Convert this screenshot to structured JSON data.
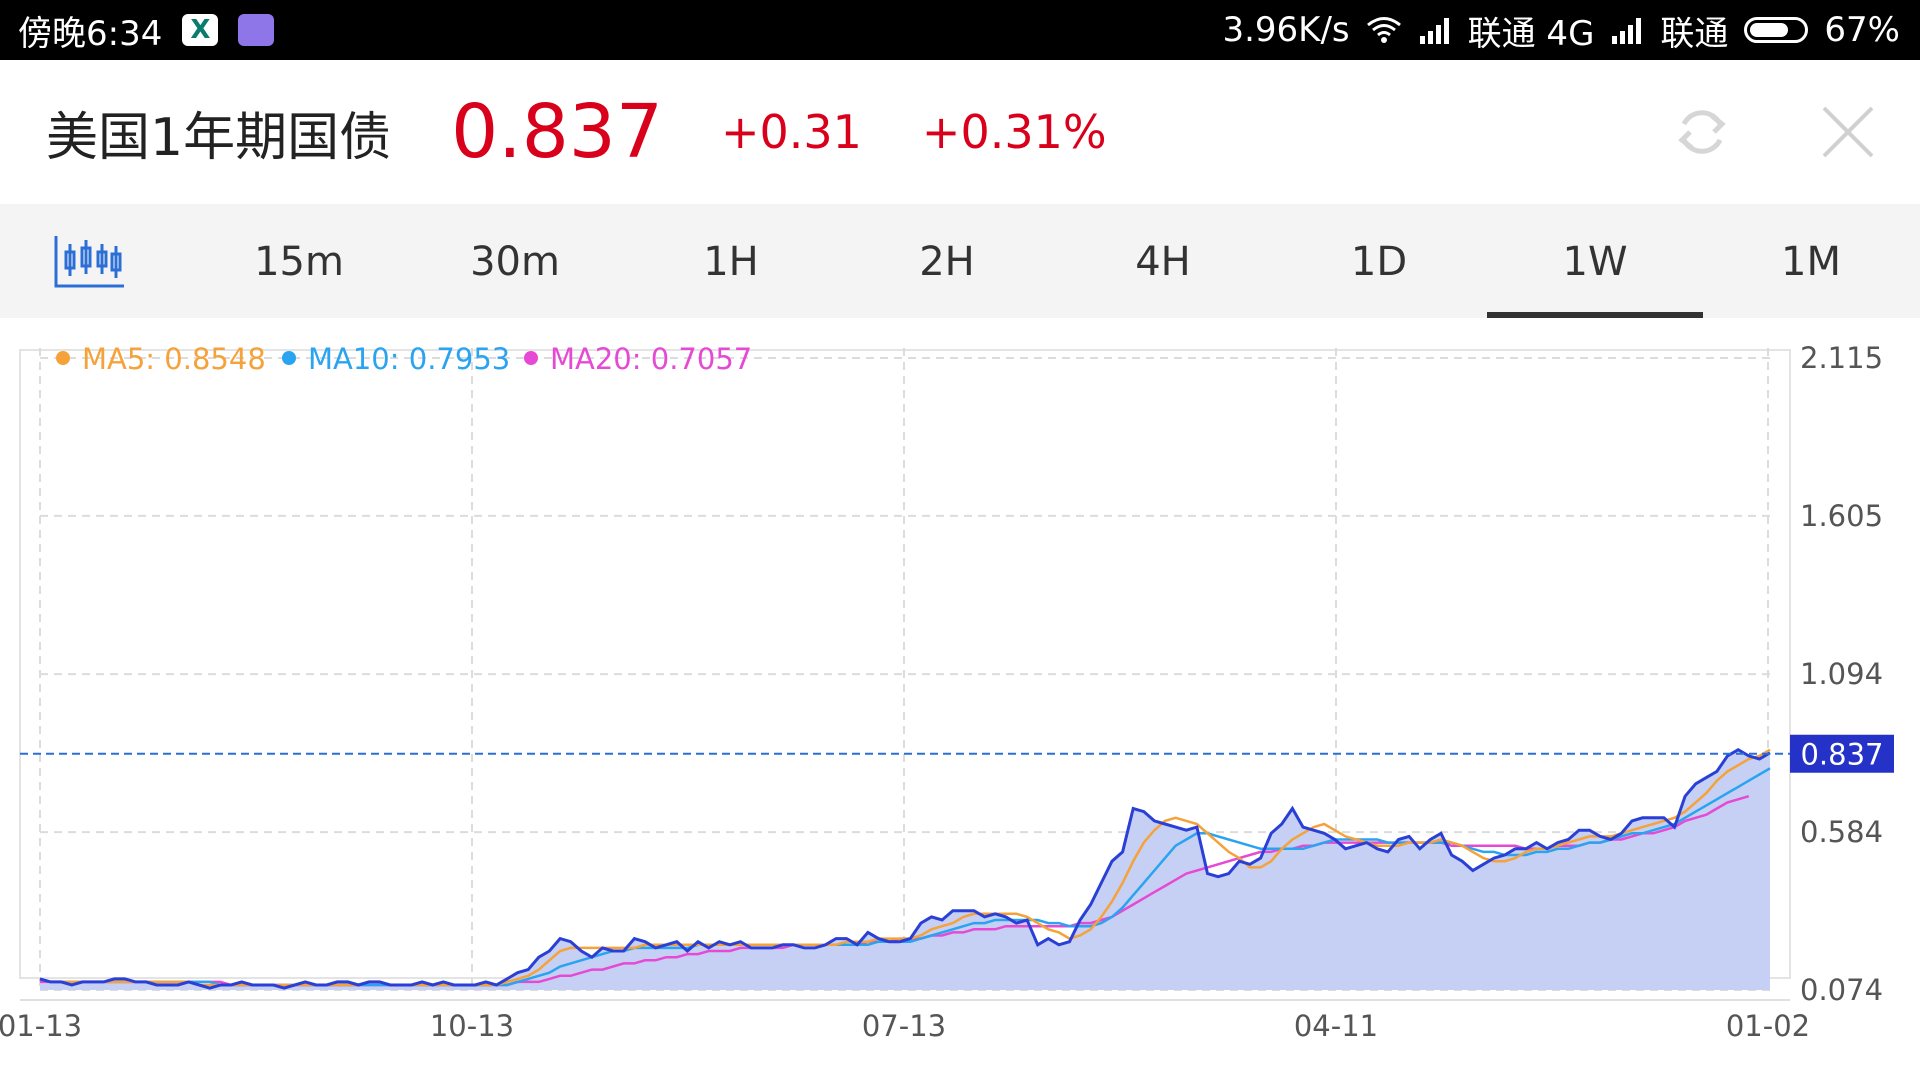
{
  "status_bar": {
    "time": "傍晚6:34",
    "net_speed": "3.96K/s",
    "carrier1": "联通 4G",
    "carrier2": "联通",
    "battery": "67%",
    "battery_level": 0.67
  },
  "header": {
    "title": "美国1年期国债",
    "price": "0.837",
    "change": "+0.31",
    "change_pct": "+0.31%",
    "accent_color": "#d9001b"
  },
  "tabs": {
    "items": [
      "15m",
      "30m",
      "1H",
      "2H",
      "4H",
      "1D",
      "1W",
      "1M"
    ],
    "active": "1W"
  },
  "chart_data": {
    "type": "line",
    "legend": [
      {
        "label": "MA5: 0.8548",
        "color": "#f5a23a"
      },
      {
        "label": "MA10: 0.7953",
        "color": "#2aa3f0"
      },
      {
        "label": "MA20: 0.7057",
        "color": "#e64ad4"
      }
    ],
    "y_ticks": [
      "2.115",
      "1.605",
      "1.094",
      "0.584",
      "0.074"
    ],
    "ylim": [
      0.074,
      2.115
    ],
    "x_ticks": [
      "01-13",
      "10-13",
      "07-13",
      "04-11",
      "01-02"
    ],
    "current_value": "0.837",
    "grid": true,
    "series": [
      {
        "name": "Price",
        "color": "#2a3fd6",
        "values": [
          0.11,
          0.1,
          0.1,
          0.09,
          0.1,
          0.1,
          0.1,
          0.11,
          0.11,
          0.1,
          0.1,
          0.09,
          0.09,
          0.09,
          0.1,
          0.09,
          0.08,
          0.09,
          0.09,
          0.1,
          0.09,
          0.09,
          0.09,
          0.08,
          0.09,
          0.1,
          0.09,
          0.09,
          0.1,
          0.1,
          0.09,
          0.1,
          0.1,
          0.09,
          0.09,
          0.09,
          0.1,
          0.09,
          0.1,
          0.09,
          0.09,
          0.09,
          0.1,
          0.09,
          0.11,
          0.13,
          0.14,
          0.18,
          0.2,
          0.24,
          0.23,
          0.2,
          0.18,
          0.21,
          0.2,
          0.2,
          0.24,
          0.23,
          0.21,
          0.22,
          0.23,
          0.2,
          0.23,
          0.21,
          0.23,
          0.22,
          0.23,
          0.21,
          0.21,
          0.21,
          0.22,
          0.22,
          0.21,
          0.21,
          0.22,
          0.24,
          0.24,
          0.22,
          0.26,
          0.24,
          0.23,
          0.23,
          0.24,
          0.29,
          0.31,
          0.3,
          0.33,
          0.33,
          0.33,
          0.31,
          0.32,
          0.31,
          0.29,
          0.3,
          0.22,
          0.24,
          0.22,
          0.23,
          0.3,
          0.35,
          0.42,
          0.49,
          0.52,
          0.66,
          0.65,
          0.62,
          0.61,
          0.6,
          0.59,
          0.6,
          0.45,
          0.44,
          0.45,
          0.49,
          0.48,
          0.5,
          0.58,
          0.61,
          0.66,
          0.6,
          0.59,
          0.58,
          0.56,
          0.53,
          0.54,
          0.55,
          0.53,
          0.52,
          0.56,
          0.57,
          0.53,
          0.56,
          0.58,
          0.51,
          0.49,
          0.46,
          0.48,
          0.5,
          0.51,
          0.53,
          0.53,
          0.55,
          0.53,
          0.55,
          0.56,
          0.59,
          0.59,
          0.57,
          0.56,
          0.58,
          0.62,
          0.63,
          0.63,
          0.63,
          0.6,
          0.7,
          0.74,
          0.76,
          0.78,
          0.83,
          0.85,
          0.83,
          0.82,
          0.84
        ]
      },
      {
        "name": "MA5",
        "color": "#f5a23a",
        "values": [
          0.11,
          0.1,
          0.1,
          0.1,
          0.1,
          0.1,
          0.1,
          0.1,
          0.1,
          0.1,
          0.1,
          0.1,
          0.1,
          0.1,
          0.1,
          0.09,
          0.09,
          0.09,
          0.09,
          0.09,
          0.09,
          0.09,
          0.09,
          0.09,
          0.09,
          0.09,
          0.09,
          0.09,
          0.09,
          0.09,
          0.09,
          0.1,
          0.1,
          0.09,
          0.09,
          0.09,
          0.09,
          0.09,
          0.09,
          0.09,
          0.09,
          0.09,
          0.09,
          0.09,
          0.1,
          0.11,
          0.12,
          0.14,
          0.17,
          0.2,
          0.21,
          0.21,
          0.21,
          0.21,
          0.21,
          0.21,
          0.21,
          0.22,
          0.22,
          0.22,
          0.22,
          0.22,
          0.22,
          0.22,
          0.22,
          0.22,
          0.22,
          0.22,
          0.22,
          0.22,
          0.22,
          0.22,
          0.22,
          0.22,
          0.22,
          0.22,
          0.23,
          0.23,
          0.23,
          0.24,
          0.24,
          0.24,
          0.24,
          0.25,
          0.27,
          0.28,
          0.29,
          0.31,
          0.32,
          0.32,
          0.32,
          0.32,
          0.32,
          0.31,
          0.29,
          0.27,
          0.26,
          0.24,
          0.25,
          0.27,
          0.31,
          0.36,
          0.42,
          0.49,
          0.55,
          0.59,
          0.62,
          0.63,
          0.62,
          0.61,
          0.58,
          0.55,
          0.52,
          0.5,
          0.47,
          0.47,
          0.49,
          0.53,
          0.56,
          0.58,
          0.6,
          0.61,
          0.59,
          0.57,
          0.56,
          0.55,
          0.54,
          0.54,
          0.54,
          0.55,
          0.55,
          0.55,
          0.56,
          0.55,
          0.54,
          0.52,
          0.5,
          0.49,
          0.49,
          0.5,
          0.52,
          0.53,
          0.53,
          0.54,
          0.55,
          0.56,
          0.57,
          0.57,
          0.57,
          0.58,
          0.59,
          0.6,
          0.61,
          0.62,
          0.63,
          0.65,
          0.68,
          0.71,
          0.75,
          0.78,
          0.8,
          0.82,
          0.83,
          0.85
        ]
      },
      {
        "name": "MA10",
        "color": "#2aa3f0",
        "values": [
          0.11,
          0.1,
          0.1,
          0.1,
          0.1,
          0.1,
          0.1,
          0.1,
          0.1,
          0.1,
          0.1,
          0.1,
          0.1,
          0.1,
          0.1,
          0.1,
          0.1,
          0.09,
          0.09,
          0.09,
          0.09,
          0.09,
          0.09,
          0.09,
          0.09,
          0.09,
          0.09,
          0.09,
          0.09,
          0.09,
          0.09,
          0.09,
          0.09,
          0.09,
          0.09,
          0.09,
          0.09,
          0.09,
          0.09,
          0.09,
          0.09,
          0.09,
          0.09,
          0.09,
          0.09,
          0.1,
          0.11,
          0.12,
          0.13,
          0.15,
          0.16,
          0.17,
          0.18,
          0.19,
          0.2,
          0.2,
          0.21,
          0.21,
          0.21,
          0.21,
          0.21,
          0.21,
          0.22,
          0.22,
          0.22,
          0.22,
          0.22,
          0.22,
          0.22,
          0.22,
          0.22,
          0.22,
          0.22,
          0.22,
          0.22,
          0.22,
          0.22,
          0.22,
          0.22,
          0.23,
          0.23,
          0.23,
          0.23,
          0.24,
          0.25,
          0.26,
          0.27,
          0.28,
          0.29,
          0.29,
          0.3,
          0.3,
          0.3,
          0.3,
          0.3,
          0.29,
          0.29,
          0.28,
          0.28,
          0.28,
          0.29,
          0.31,
          0.34,
          0.38,
          0.42,
          0.46,
          0.5,
          0.54,
          0.56,
          0.58,
          0.58,
          0.57,
          0.56,
          0.55,
          0.54,
          0.53,
          0.53,
          0.53,
          0.53,
          0.53,
          0.54,
          0.55,
          0.56,
          0.56,
          0.56,
          0.56,
          0.56,
          0.55,
          0.55,
          0.55,
          0.55,
          0.55,
          0.55,
          0.55,
          0.54,
          0.53,
          0.52,
          0.52,
          0.51,
          0.51,
          0.51,
          0.52,
          0.52,
          0.53,
          0.53,
          0.54,
          0.55,
          0.55,
          0.56,
          0.57,
          0.58,
          0.58,
          0.59,
          0.6,
          0.61,
          0.63,
          0.65,
          0.67,
          0.69,
          0.71,
          0.73,
          0.75,
          0.77,
          0.79
        ]
      },
      {
        "name": "MA20",
        "color": "#e64ad4",
        "values": [
          0.1,
          0.1,
          0.1,
          0.1,
          0.1,
          0.1,
          0.1,
          0.1,
          0.1,
          0.1,
          0.1,
          0.1,
          0.1,
          0.1,
          0.1,
          0.1,
          0.1,
          0.1,
          0.09,
          0.09,
          0.09,
          0.09,
          0.09,
          0.09,
          0.09,
          0.09,
          0.09,
          0.09,
          0.09,
          0.09,
          0.09,
          0.09,
          0.09,
          0.09,
          0.09,
          0.09,
          0.09,
          0.09,
          0.09,
          0.09,
          0.09,
          0.09,
          0.09,
          0.09,
          0.09,
          0.1,
          0.1,
          0.1,
          0.11,
          0.12,
          0.12,
          0.13,
          0.14,
          0.14,
          0.15,
          0.16,
          0.16,
          0.17,
          0.17,
          0.18,
          0.18,
          0.19,
          0.19,
          0.2,
          0.2,
          0.2,
          0.21,
          0.21,
          0.21,
          0.21,
          0.21,
          0.22,
          0.22,
          0.22,
          0.22,
          0.22,
          0.22,
          0.22,
          0.23,
          0.23,
          0.23,
          0.24,
          0.24,
          0.24,
          0.25,
          0.25,
          0.26,
          0.26,
          0.27,
          0.27,
          0.27,
          0.28,
          0.28,
          0.28,
          0.28,
          0.28,
          0.28,
          0.28,
          0.29,
          0.29,
          0.3,
          0.31,
          0.33,
          0.35,
          0.37,
          0.39,
          0.41,
          0.43,
          0.45,
          0.46,
          0.47,
          0.48,
          0.49,
          0.5,
          0.51,
          0.52,
          0.52,
          0.53,
          0.53,
          0.54,
          0.54,
          0.55,
          0.55,
          0.55,
          0.55,
          0.55,
          0.55,
          0.55,
          0.55,
          0.55,
          0.55,
          0.55,
          0.55,
          0.54,
          0.54,
          0.54,
          0.54,
          0.54,
          0.54,
          0.54,
          0.53,
          0.53,
          0.53,
          0.54,
          0.54,
          0.54,
          0.55,
          0.55,
          0.56,
          0.56,
          0.57,
          0.58,
          0.58,
          0.59,
          0.6,
          0.62,
          0.63,
          0.64,
          0.66,
          0.68,
          0.69,
          0.7
        ]
      }
    ]
  }
}
